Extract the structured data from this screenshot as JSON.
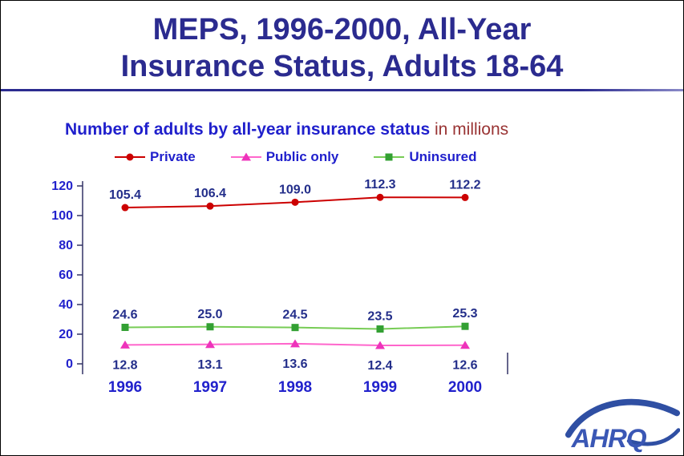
{
  "slide": {
    "title_line1": "MEPS, 1996-2000, All-Year",
    "title_line2": "Insurance Status, Adults 18-64",
    "subtitle": "Number of adults by all-year insurance status",
    "subtitle_suffix": " in millions"
  },
  "chart_data": {
    "type": "line",
    "title": "Number of adults by all-year insurance status (in millions)",
    "categories": [
      "1996",
      "1997",
      "1998",
      "1999",
      "2000"
    ],
    "series": [
      {
        "name": "Private",
        "marker": "circle",
        "color": "#CC0000",
        "marker_color": "#CC0000",
        "values": [
          105.4,
          106.4,
          109.0,
          112.3,
          112.2
        ],
        "label_position": "above"
      },
      {
        "name": "Public only",
        "marker": "triangle",
        "color": "#FF66CC",
        "marker_color": "#EE33BB",
        "values": [
          12.8,
          13.1,
          13.6,
          12.4,
          12.6
        ],
        "label_position": "below"
      },
      {
        "name": "Uninsured",
        "marker": "square",
        "color": "#77CC55",
        "marker_color": "#33A033",
        "values": [
          24.6,
          25.0,
          24.5,
          23.5,
          25.3
        ],
        "label_position": "above"
      }
    ],
    "ylim": [
      0,
      120
    ],
    "yticks": [
      0,
      20,
      40,
      60,
      80,
      100,
      120
    ],
    "xlabel": "",
    "ylabel": "",
    "legend_position": "top",
    "grid": false
  },
  "logo": {
    "text": "AHRQ"
  },
  "colors": {
    "title": "#2B2B8F",
    "rule": "#2B2B8F",
    "subtitle": "#1F1FCC",
    "subtitle_suffix": "#993333",
    "legend_label": "#1F1FCC",
    "axis_label": "#2121CC",
    "value_label": "#232E8A",
    "axis_line": "#333366",
    "logo_blue": "#2F4FA3"
  }
}
